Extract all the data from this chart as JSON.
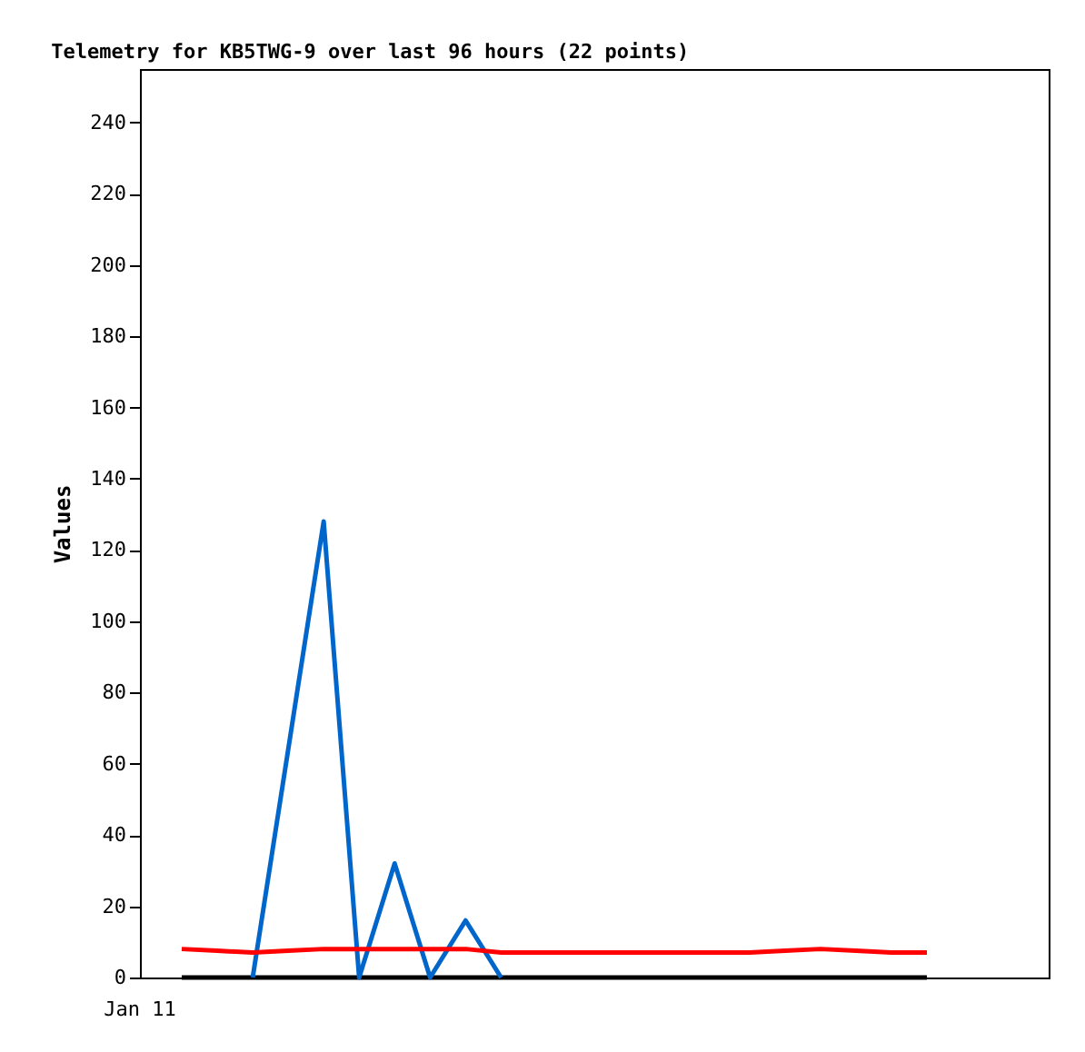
{
  "chart_data": {
    "type": "line",
    "title": "Telemetry for KB5TWG-9 over last 96 hours (22 points)",
    "ylabel": "Values",
    "categories": [
      null,
      null,
      null,
      null,
      null,
      null,
      null,
      null,
      null,
      null,
      null,
      null,
      null,
      null,
      null,
      null,
      null,
      null,
      null,
      null,
      null,
      null
    ],
    "annotations": [
      "Jan 11"
    ],
    "ylim": [
      0,
      255
    ],
    "yticks": [
      0,
      20,
      40,
      60,
      80,
      100,
      120,
      140,
      160,
      180,
      200,
      220,
      240
    ],
    "grid": false,
    "series": [
      {
        "color": "#000000",
        "values": [
          0,
          0,
          0,
          0,
          0,
          0,
          0,
          0,
          0,
          0,
          0,
          0,
          0,
          0,
          0,
          0,
          0,
          0,
          0,
          0,
          0,
          0
        ]
      },
      {
        "color": "#0066cc",
        "values": [
          null,
          null,
          0,
          64,
          128,
          0,
          32,
          0,
          16,
          0,
          null,
          null,
          null,
          null,
          null,
          null,
          null,
          null,
          null,
          null,
          null,
          null
        ]
      },
      {
        "color": "#ff0000",
        "values": [
          8,
          7.5,
          7,
          7.5,
          8,
          8,
          8,
          8,
          8,
          7,
          7,
          7,
          7,
          7,
          7,
          7,
          7,
          7.5,
          8,
          7.5,
          7,
          7
        ]
      }
    ]
  }
}
